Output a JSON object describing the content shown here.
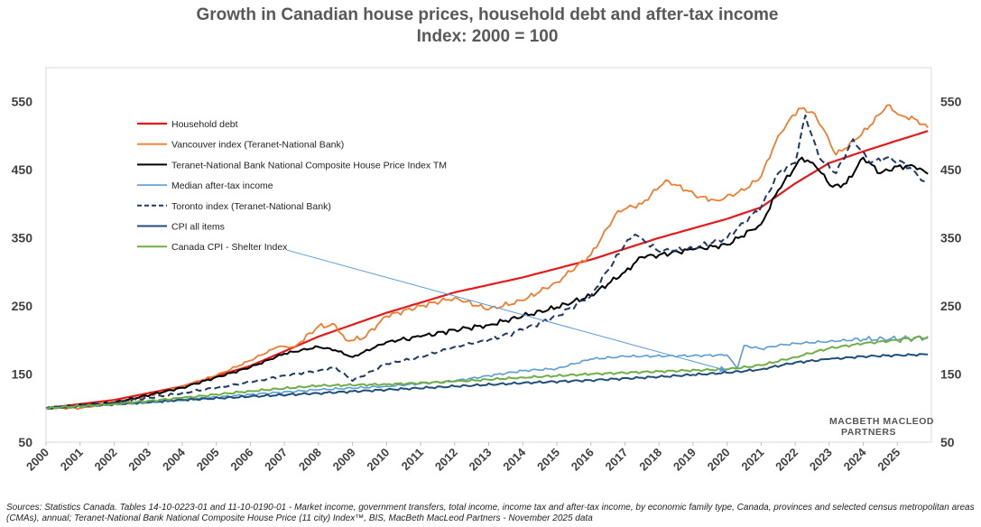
{
  "chart_data": {
    "type": "line",
    "title": "Growth in Canadian house prices, household debt and after-tax income",
    "subtitle": "Index: 2000 = 100",
    "yticks": [
      50,
      150,
      250,
      350,
      450,
      550
    ],
    "ylim": [
      50,
      600
    ],
    "xlim": [
      2000,
      2026
    ],
    "x_tick_labels": [
      "2000",
      "2001",
      "2002",
      "2003",
      "2004",
      "2005",
      "2006",
      "2007",
      "2008",
      "2009",
      "2010",
      "2011",
      "2012",
      "2013",
      "2014",
      "2015",
      "2016",
      "2017",
      "2018",
      "2019",
      "2020",
      "2021",
      "2022",
      "2023",
      "2024",
      "2025"
    ],
    "legend_position": "upper-left",
    "annotation": {
      "label": "Canada CPI - Shelter Index",
      "points_to": [
        2020.0,
        155
      ]
    },
    "series": [
      {
        "name": "Household debt",
        "color": "#e31a1c",
        "dash": "",
        "width": 2.2,
        "points": [
          [
            2000,
            100
          ],
          [
            2002,
            112
          ],
          [
            2004,
            132
          ],
          [
            2006,
            162
          ],
          [
            2008,
            205
          ],
          [
            2010,
            240
          ],
          [
            2012,
            270
          ],
          [
            2014,
            292
          ],
          [
            2016,
            318
          ],
          [
            2018,
            350
          ],
          [
            2020,
            378
          ],
          [
            2021,
            395
          ],
          [
            2022,
            430
          ],
          [
            2023,
            460
          ],
          [
            2024,
            477
          ],
          [
            2025,
            493
          ],
          [
            2025.9,
            507
          ]
        ]
      },
      {
        "name": "Vancouver index (Teranet-National Bank)",
        "color": "#ed7d31",
        "dash": "",
        "width": 1.8,
        "points": [
          [
            2000,
            100
          ],
          [
            2001,
            100
          ],
          [
            2002,
            108
          ],
          [
            2003,
            118
          ],
          [
            2004,
            132
          ],
          [
            2005,
            148
          ],
          [
            2006,
            170
          ],
          [
            2006.8,
            190
          ],
          [
            2007.3,
            190
          ],
          [
            2008,
            220
          ],
          [
            2008.5,
            222
          ],
          [
            2008.8,
            200
          ],
          [
            2009.3,
            202
          ],
          [
            2010,
            235
          ],
          [
            2011,
            250
          ],
          [
            2012,
            262
          ],
          [
            2012.7,
            250
          ],
          [
            2013,
            245
          ],
          [
            2014,
            258
          ],
          [
            2015,
            285
          ],
          [
            2016,
            325
          ],
          [
            2016.8,
            390
          ],
          [
            2017.5,
            400
          ],
          [
            2018.2,
            435
          ],
          [
            2018.8,
            420
          ],
          [
            2019.2,
            410
          ],
          [
            2019.7,
            405
          ],
          [
            2020.5,
            420
          ],
          [
            2021,
            440
          ],
          [
            2021.5,
            500
          ],
          [
            2022.1,
            540
          ],
          [
            2022.5,
            535
          ],
          [
            2022.8,
            512
          ],
          [
            2023.2,
            472
          ],
          [
            2023.8,
            495
          ],
          [
            2024.2,
            515
          ],
          [
            2024.7,
            545
          ],
          [
            2025.1,
            530
          ],
          [
            2025.5,
            525
          ],
          [
            2025.9,
            512
          ]
        ]
      },
      {
        "name": "Teranet-National Bank National Composite House Price Index TM",
        "color": "#000000",
        "dash": "",
        "width": 2.0,
        "points": [
          [
            2000,
            100
          ],
          [
            2002,
            108
          ],
          [
            2004,
            130
          ],
          [
            2006,
            160
          ],
          [
            2007,
            180
          ],
          [
            2008,
            190
          ],
          [
            2008.5,
            185
          ],
          [
            2009,
            175
          ],
          [
            2010,
            197
          ],
          [
            2011,
            205
          ],
          [
            2012,
            215
          ],
          [
            2013,
            222
          ],
          [
            2014,
            235
          ],
          [
            2015,
            248
          ],
          [
            2016,
            265
          ],
          [
            2017,
            300
          ],
          [
            2017.5,
            322
          ],
          [
            2018,
            325
          ],
          [
            2019,
            333
          ],
          [
            2020,
            340
          ],
          [
            2021,
            370
          ],
          [
            2021.5,
            420
          ],
          [
            2022.2,
            468
          ],
          [
            2022.6,
            455
          ],
          [
            2023.1,
            425
          ],
          [
            2023.5,
            430
          ],
          [
            2024,
            468
          ],
          [
            2024.5,
            445
          ],
          [
            2025,
            455
          ],
          [
            2025.5,
            455
          ],
          [
            2025.9,
            444
          ]
        ]
      },
      {
        "name": "Median after-tax income",
        "color": "#5b9bd5",
        "dash": "",
        "width": 1.6,
        "points": [
          [
            2000,
            100
          ],
          [
            2003,
            108
          ],
          [
            2006,
            120
          ],
          [
            2008,
            127
          ],
          [
            2010,
            132
          ],
          [
            2012,
            140
          ],
          [
            2014,
            155
          ],
          [
            2015,
            158
          ],
          [
            2016,
            172
          ],
          [
            2017,
            176
          ],
          [
            2019,
            177
          ],
          [
            2020,
            178
          ],
          [
            2020.3,
            158
          ],
          [
            2020.5,
            192
          ],
          [
            2021,
            187
          ],
          [
            2021.5,
            192
          ],
          [
            2022,
            195
          ],
          [
            2023,
            198
          ],
          [
            2024,
            201
          ],
          [
            2025.9,
            203
          ]
        ]
      },
      {
        "name": "Toronto index (Teranet-National Bank)",
        "color": "#1f3864",
        "dash": "7,4",
        "width": 2.0,
        "points": [
          [
            2000,
            100
          ],
          [
            2002,
            108
          ],
          [
            2004,
            122
          ],
          [
            2006,
            138
          ],
          [
            2007,
            148
          ],
          [
            2008,
            155
          ],
          [
            2008.5,
            160
          ],
          [
            2009,
            140
          ],
          [
            2010,
            165
          ],
          [
            2011,
            175
          ],
          [
            2012,
            190
          ],
          [
            2013,
            200
          ],
          [
            2014,
            215
          ],
          [
            2015,
            235
          ],
          [
            2016,
            265
          ],
          [
            2017,
            340
          ],
          [
            2017.3,
            355
          ],
          [
            2018,
            330
          ],
          [
            2019,
            335
          ],
          [
            2020,
            350
          ],
          [
            2021,
            395
          ],
          [
            2021.5,
            445
          ],
          [
            2022,
            460
          ],
          [
            2022.3,
            530
          ],
          [
            2022.7,
            468
          ],
          [
            2023.2,
            445
          ],
          [
            2023.7,
            495
          ],
          [
            2024.2,
            460
          ],
          [
            2024.7,
            468
          ],
          [
            2025.2,
            460
          ],
          [
            2025.8,
            433
          ]
        ]
      },
      {
        "name": "CPI all items",
        "color": "#1f4e79",
        "dash": "",
        "width": 2.0,
        "points": [
          [
            2000,
            100
          ],
          [
            2002,
            106
          ],
          [
            2004,
            112
          ],
          [
            2006,
            117
          ],
          [
            2008,
            122
          ],
          [
            2010,
            127
          ],
          [
            2012,
            132
          ],
          [
            2014,
            137
          ],
          [
            2016,
            141
          ],
          [
            2018,
            146
          ],
          [
            2019,
            149
          ],
          [
            2020,
            152
          ],
          [
            2021,
            157
          ],
          [
            2022,
            167
          ],
          [
            2023,
            172
          ],
          [
            2024,
            176
          ],
          [
            2025.9,
            179
          ]
        ]
      },
      {
        "name": "Canada CPI - Shelter Index",
        "color": "#70ad47",
        "dash": "",
        "width": 2.0,
        "points": [
          [
            2000,
            100
          ],
          [
            2002,
            106
          ],
          [
            2004,
            115
          ],
          [
            2006,
            125
          ],
          [
            2008,
            133
          ],
          [
            2010,
            135
          ],
          [
            2012,
            139
          ],
          [
            2014,
            145
          ],
          [
            2016,
            150
          ],
          [
            2018,
            154
          ],
          [
            2020,
            157
          ],
          [
            2021,
            163
          ],
          [
            2022,
            175
          ],
          [
            2023,
            188
          ],
          [
            2024,
            195
          ],
          [
            2025,
            200
          ],
          [
            2025.9,
            205
          ]
        ]
      }
    ]
  },
  "branding": {
    "line1": "MACBETH MACLEOD",
    "line2": "PARTNERS"
  },
  "source_note": "Sources: Statistics Canada. Tables 14-10-0223-01 and 11-10-0190-01 -  Market income, government transfers, total income, income tax and after-tax income, by economic family type, Canada, provinces and selected census metropolitan areas (CMAs), annual; Teranet-National Bank National Composite House Price (11 city) Index™, BIS, MacBeth MacLeod Partners - November 2025 data"
}
